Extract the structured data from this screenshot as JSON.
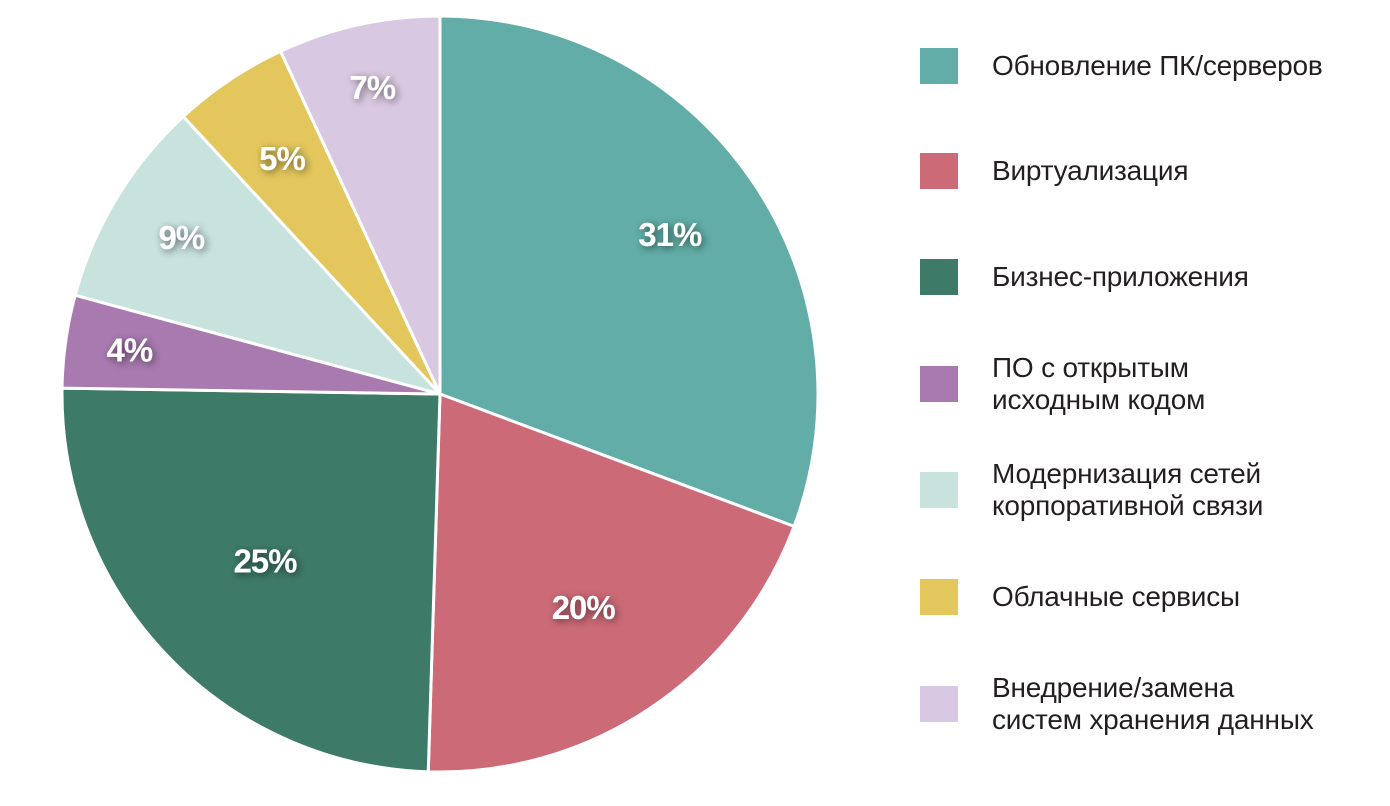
{
  "chart_data": {
    "type": "pie",
    "slices": [
      {
        "label": "Обновление ПК/серверов",
        "value": 31,
        "value_label": "31%",
        "color": "#62ada7"
      },
      {
        "label": "Виртуализация",
        "value": 20,
        "value_label": "20%",
        "color": "#cc6a77"
      },
      {
        "label": "Бизнес-приложения",
        "value": 25,
        "value_label": "25%",
        "color": "#3e7a68"
      },
      {
        "label": "ПО с открытым\nисходным кодом",
        "value": 4,
        "value_label": "4%",
        "color": "#a87ab0"
      },
      {
        "label": "Модернизация сетей\nкорпоративной связи",
        "value": 9,
        "value_label": "9%",
        "color": "#c8e2de"
      },
      {
        "label": "Облачные сервисы",
        "value": 5,
        "value_label": "5%",
        "color": "#e3c75d"
      },
      {
        "label": "Внедрение/замена\nсистем хранения данных",
        "value": 7,
        "value_label": "7%",
        "color": "#d9c8e1"
      }
    ],
    "start_angle_deg": 0,
    "direction": "clockwise",
    "legend_position": "right"
  }
}
